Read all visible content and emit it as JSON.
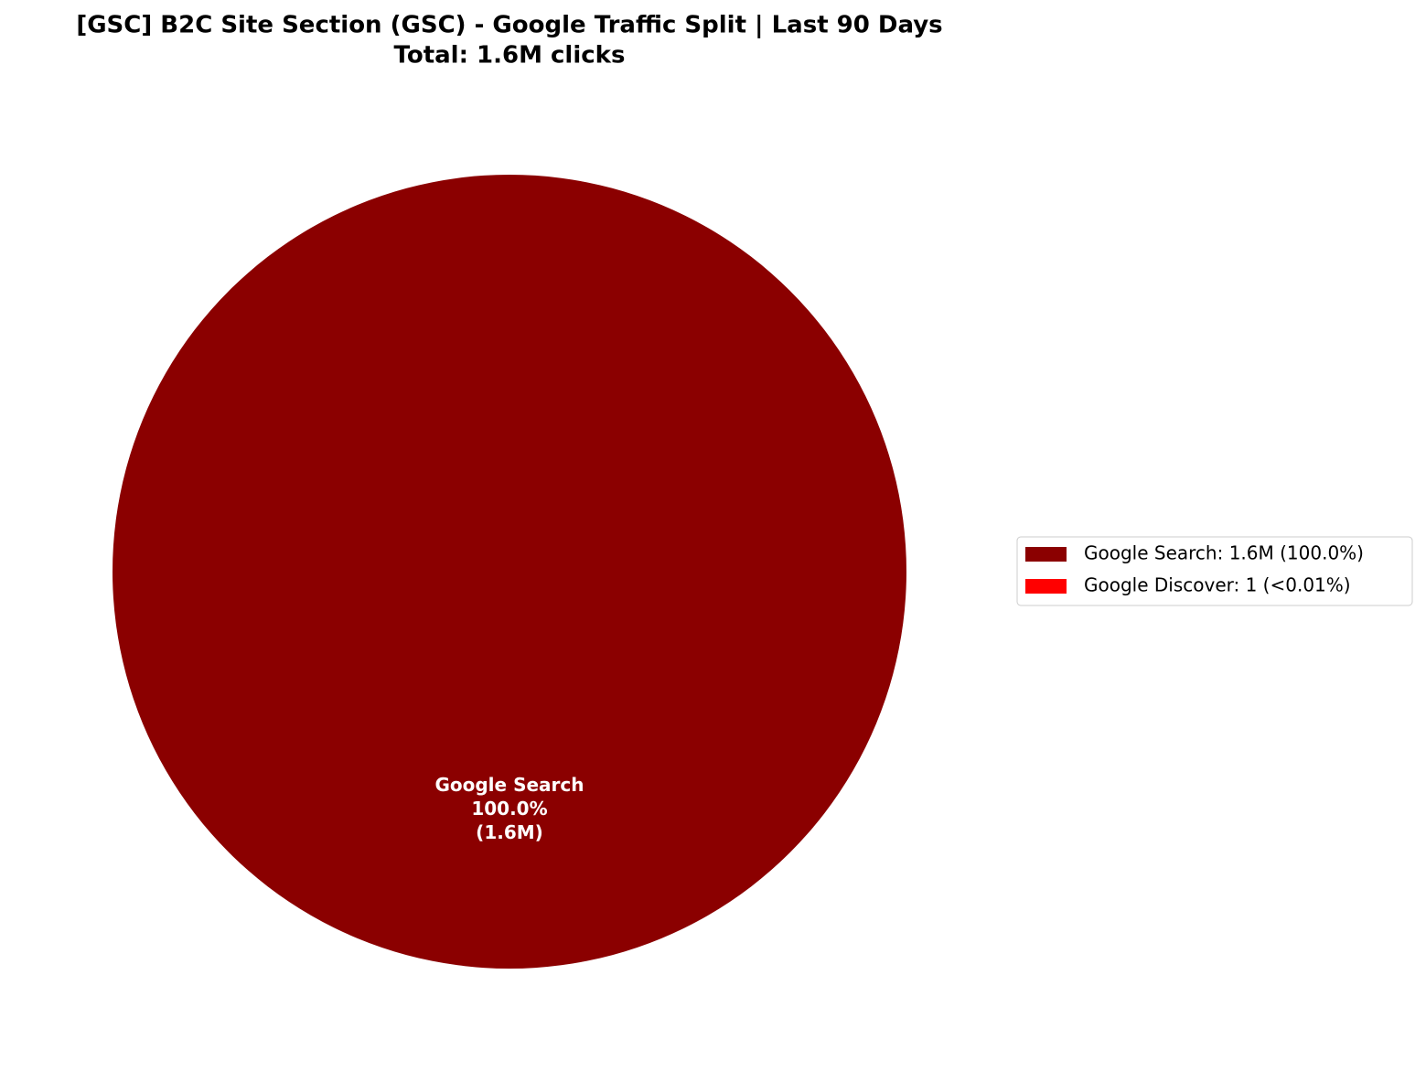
{
  "chart_data": {
    "type": "pie",
    "title": "[GSC] B2C Site Section (GSC) - Google Traffic Split | Last 90 Days",
    "subtitle": "Total: 1.6M clicks",
    "categories": [
      "Google Search",
      "Google Discover"
    ],
    "values": [
      1600000,
      1
    ],
    "colors": [
      "#8b0000",
      "#ff0000"
    ],
    "slice_labels": [
      [
        "Google Search",
        "100.0%",
        "(1.6M)"
      ],
      null
    ],
    "legend_labels": [
      "Google Search: 1.6M (100.0%)",
      "Google Discover: 1 (<0.01%)"
    ],
    "legend": "right"
  }
}
